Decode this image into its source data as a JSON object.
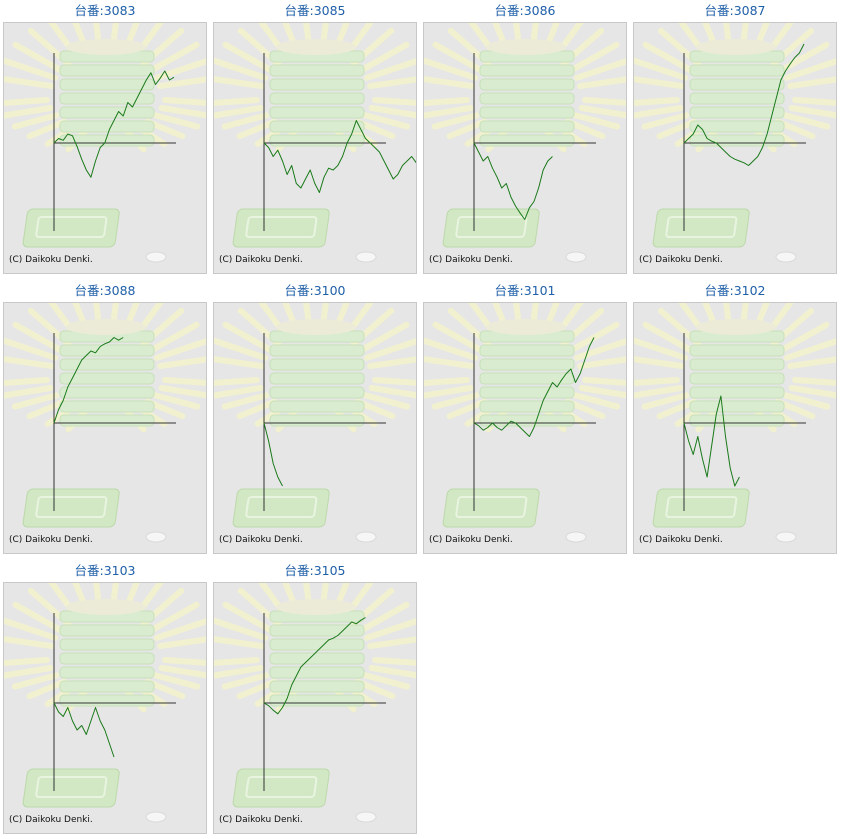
{
  "copyright": "(C) Daikoku Denki.",
  "colors": {
    "title": "#1f5fa8",
    "line": "#1a7a1a",
    "axis": "#333333",
    "panel": "#e6e6e6"
  },
  "chart_data": [
    {
      "type": "line",
      "title": "台番:3083",
      "xlabel": "",
      "ylabel": "",
      "values": [
        0,
        5,
        3,
        10,
        8,
        -4,
        -18,
        -30,
        -38,
        -20,
        -5,
        0,
        15,
        25,
        35,
        30,
        45,
        40,
        50,
        60,
        70,
        78,
        65,
        72,
        80,
        70,
        73
      ]
    },
    {
      "type": "line",
      "title": "台番:3085",
      "xlabel": "",
      "ylabel": "",
      "values": [
        0,
        -5,
        -15,
        -8,
        -20,
        -35,
        -25,
        -45,
        -50,
        -40,
        -30,
        -45,
        -55,
        -38,
        -28,
        -30,
        -25,
        -15,
        0,
        10,
        25,
        15,
        5,
        0,
        -5,
        -10,
        -20,
        -30,
        -40,
        -35,
        -25,
        -20,
        -15,
        -22,
        -18
      ]
    },
    {
      "type": "line",
      "title": "台番:3086",
      "xlabel": "",
      "ylabel": "",
      "values": [
        0,
        -10,
        -20,
        -15,
        -28,
        -38,
        -50,
        -45,
        -60,
        -70,
        -78,
        -85,
        -72,
        -65,
        -50,
        -30,
        -20,
        -15
      ]
    },
    {
      "type": "line",
      "title": "台番:3087",
      "xlabel": "",
      "ylabel": "",
      "values": [
        0,
        5,
        10,
        20,
        15,
        5,
        2,
        0,
        -5,
        -10,
        -15,
        -18,
        -20,
        -22,
        -25,
        -20,
        -15,
        -5,
        10,
        30,
        50,
        70,
        80,
        88,
        95,
        100,
        110
      ]
    },
    {
      "type": "line",
      "title": "台番:3088",
      "xlabel": "",
      "ylabel": "",
      "values": [
        0,
        15,
        25,
        40,
        50,
        60,
        70,
        75,
        80,
        78,
        85,
        88,
        90,
        95,
        92,
        95
      ]
    },
    {
      "type": "line",
      "title": "台番:3100",
      "xlabel": "",
      "ylabel": "",
      "values": [
        0,
        -20,
        -45,
        -60,
        -70
      ]
    },
    {
      "type": "line",
      "title": "台番:3101",
      "xlabel": "",
      "ylabel": "",
      "values": [
        0,
        -3,
        -8,
        -5,
        0,
        -5,
        -8,
        -3,
        2,
        0,
        -5,
        -10,
        -15,
        -5,
        10,
        25,
        35,
        45,
        40,
        48,
        55,
        60,
        45,
        55,
        70,
        85,
        95
      ]
    },
    {
      "type": "line",
      "title": "台番:3102",
      "xlabel": "",
      "ylabel": "",
      "values": [
        0,
        -20,
        -35,
        -15,
        -40,
        -60,
        -25,
        10,
        30,
        -15,
        -50,
        -70,
        -60
      ]
    },
    {
      "type": "line",
      "title": "台番:3103",
      "xlabel": "",
      "ylabel": "",
      "values": [
        0,
        -10,
        -15,
        -5,
        -20,
        -30,
        -25,
        -35,
        -20,
        -5,
        -20,
        -30,
        -45,
        -60
      ]
    },
    {
      "type": "line",
      "title": "台番:3105",
      "xlabel": "",
      "ylabel": "",
      "values": [
        0,
        -3,
        -8,
        -12,
        -5,
        5,
        20,
        30,
        40,
        45,
        50,
        55,
        60,
        65,
        70,
        72,
        75,
        80,
        85,
        90,
        88,
        92,
        95
      ]
    }
  ]
}
